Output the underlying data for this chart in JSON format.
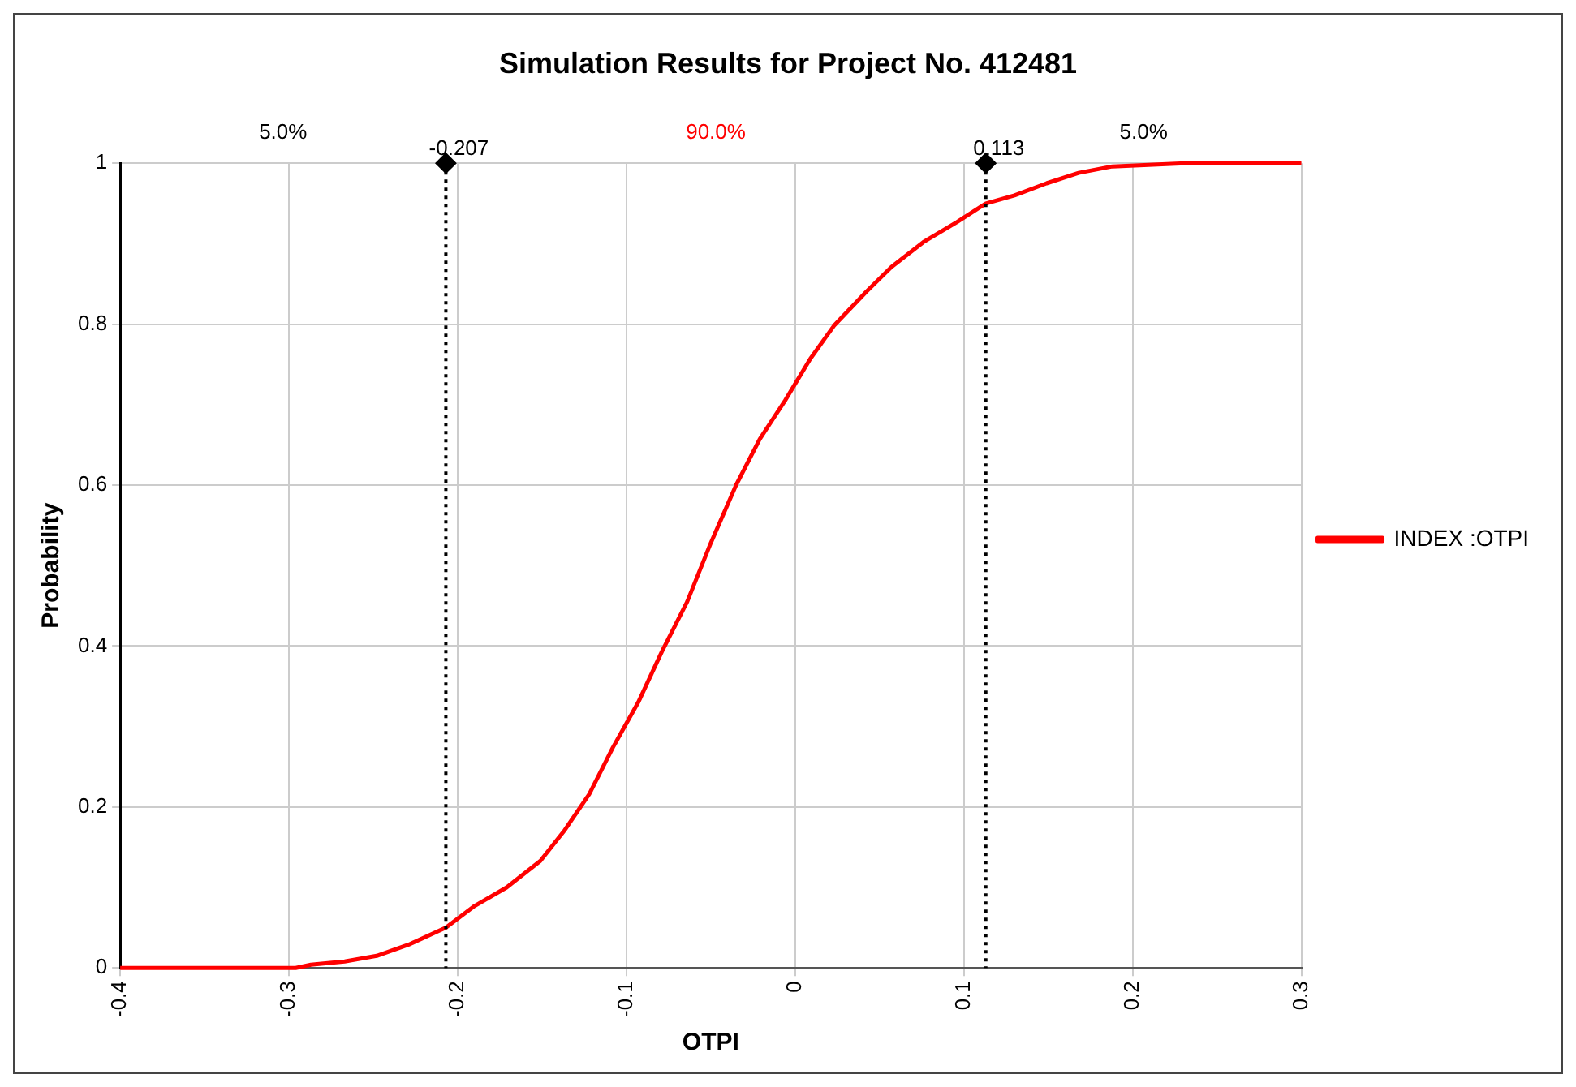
{
  "chart_data": {
    "type": "line",
    "title": "Simulation Results for Project No. 412481",
    "xlabel": "OTPI",
    "ylabel": "Probability",
    "series": [
      {
        "name": "INDEX :OTPI",
        "color": "#ff0000",
        "x": [
          -0.4,
          -0.296,
          -0.287,
          -0.267,
          -0.248,
          -0.229,
          -0.207,
          -0.19,
          -0.171,
          -0.151,
          -0.137,
          -0.122,
          -0.108,
          -0.093,
          -0.079,
          -0.064,
          -0.05,
          -0.035,
          -0.021,
          -0.006,
          0.009,
          0.023,
          0.042,
          0.057,
          0.076,
          0.096,
          0.113,
          0.13,
          0.149,
          0.168,
          0.188,
          0.231,
          0.3
        ],
        "values": [
          0,
          0,
          0.004,
          0.008,
          0.015,
          0.029,
          0.05,
          0.077,
          0.1,
          0.133,
          0.17,
          0.216,
          0.274,
          0.33,
          0.393,
          0.455,
          0.528,
          0.6,
          0.657,
          0.705,
          0.757,
          0.798,
          0.84,
          0.871,
          0.902,
          0.927,
          0.95,
          0.96,
          0.975,
          0.988,
          0.996,
          1,
          1
        ]
      },
      {
        "type": "scatter",
        "color": "#000000",
        "marker": "diamond",
        "x": [
          -0.207,
          0.113
        ],
        "values": [
          1,
          1
        ]
      }
    ],
    "xlim": [
      -0.4,
      0.3
    ],
    "xticks": [
      -0.4,
      -0.3,
      -0.2,
      -0.1,
      0,
      0.1,
      0.2,
      0.3
    ],
    "ylim": [
      0,
      1
    ],
    "yticks": [
      0,
      0.2,
      0.4,
      0.6,
      0.8,
      1
    ],
    "ref_lines": [
      {
        "axis": "x",
        "value": -0.207,
        "label": "-0.207",
        "color": "#000000",
        "line_style": "dotted"
      },
      {
        "axis": "x",
        "value": 0.113,
        "label": "0.113",
        "color": "#000000",
        "line_style": "dotted"
      }
    ],
    "annotations": [
      "5.0%",
      "90.0%",
      "5.0%"
    ],
    "grid": true,
    "legend": "right",
    "marker": "none",
    "line_style": "solid"
  }
}
